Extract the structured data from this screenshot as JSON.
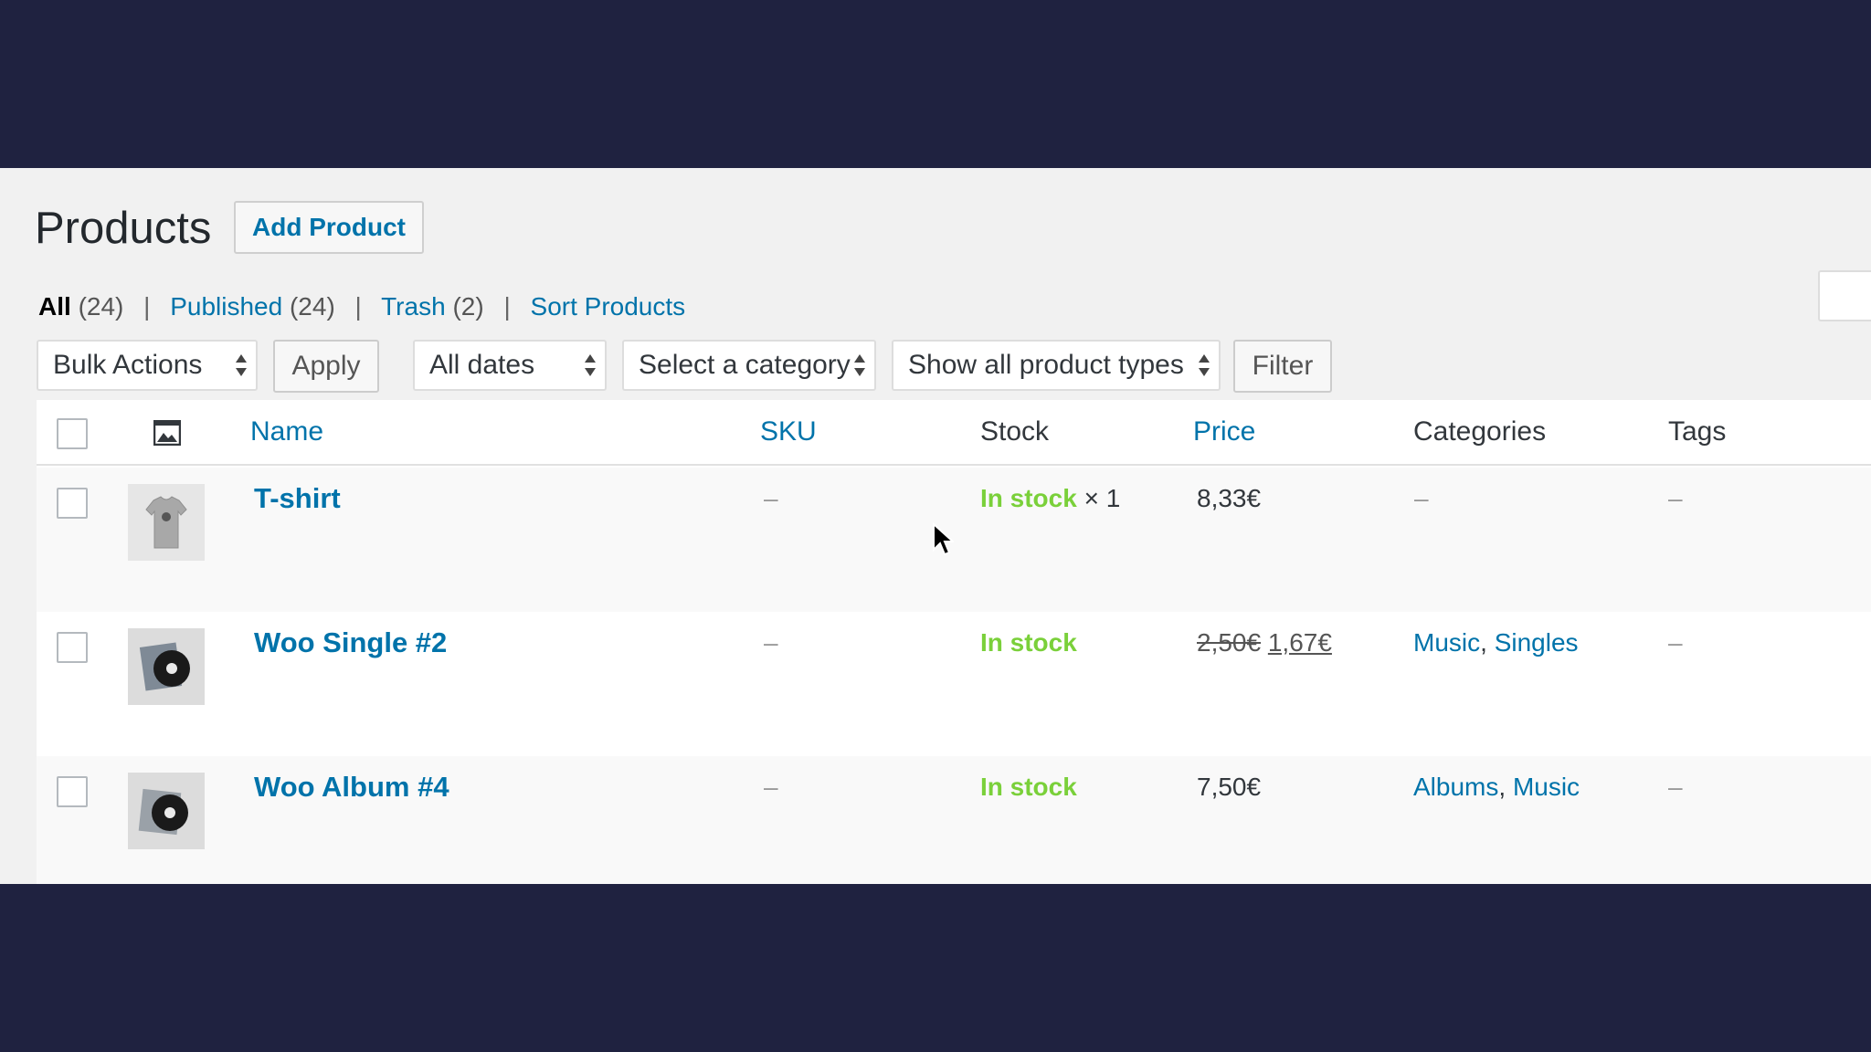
{
  "page": {
    "title": "Products",
    "add_button": "Add Product"
  },
  "views": {
    "all_label": "All",
    "all_count": "(24)",
    "published_label": "Published",
    "published_count": "(24)",
    "trash_label": "Trash",
    "trash_count": "(2)",
    "sort_label": "Sort Products",
    "separator": "|"
  },
  "filters": {
    "bulk_actions": "Bulk Actions",
    "apply": "Apply",
    "dates": "All dates",
    "category": "Select a category",
    "product_type": "Show all product types",
    "filter": "Filter"
  },
  "table": {
    "columns": {
      "name": "Name",
      "sku": "SKU",
      "stock": "Stock",
      "price": "Price",
      "categories": "Categories",
      "tags": "Tags"
    },
    "rows": [
      {
        "name": "T-shirt",
        "sku": "–",
        "stock": "In stock",
        "stock_qty": "× 1",
        "price": "8,33€",
        "categories": "–",
        "tags": "–",
        "thumb_icon": "tshirt-thumbnail"
      },
      {
        "name": "Woo Single #2",
        "sku": "–",
        "stock": "In stock",
        "price_old": "2,50€",
        "price_new": "1,67€",
        "cat1": "Music",
        "cat_sep": ",",
        "cat2": "Singles",
        "tags": "–",
        "thumb_icon": "vinyl-single-thumbnail"
      },
      {
        "name": "Woo Album #4",
        "sku": "–",
        "stock": "In stock",
        "price": "7,50€",
        "cat1": "Albums",
        "cat_sep": ",",
        "cat2": "Music",
        "tags": "–",
        "thumb_icon": "vinyl-album-thumbnail"
      }
    ]
  },
  "colors": {
    "background": "#1f2240",
    "link": "#0073aa",
    "in_stock": "#7ad03a"
  }
}
